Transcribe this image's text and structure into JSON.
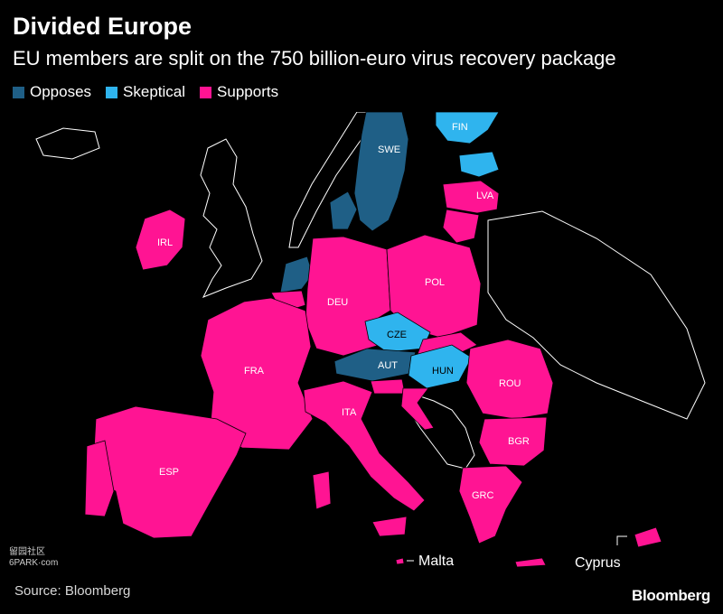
{
  "title": "Divided Europe",
  "subtitle": "EU members are split on the 750 billion-euro virus recovery package",
  "legend": [
    {
      "label": "Opposes",
      "color": "#1f5f86"
    },
    {
      "label": "Skeptical",
      "color": "#2fb4ee"
    },
    {
      "label": "Supports",
      "color": "#ff1493"
    }
  ],
  "countries": {
    "swe": {
      "label": "SWE",
      "stance": "Opposes"
    },
    "fin": {
      "label": "FIN",
      "stance": "Skeptical"
    },
    "lva": {
      "label": "LVA",
      "stance": "Supports"
    },
    "irl": {
      "label": "IRL",
      "stance": "Supports"
    },
    "pol": {
      "label": "POL",
      "stance": "Supports"
    },
    "deu": {
      "label": "DEU",
      "stance": "Supports"
    },
    "cze": {
      "label": "CZE",
      "stance": "Skeptical"
    },
    "aut": {
      "label": "AUT",
      "stance": "Opposes"
    },
    "hun": {
      "label": "HUN",
      "stance": "Skeptical"
    },
    "rou": {
      "label": "ROU",
      "stance": "Supports"
    },
    "fra": {
      "label": "FRA",
      "stance": "Supports"
    },
    "ita": {
      "label": "ITA",
      "stance": "Supports"
    },
    "bgr": {
      "label": "BGR",
      "stance": "Supports"
    },
    "esp": {
      "label": "ESP",
      "stance": "Supports"
    },
    "grc": {
      "label": "GRC",
      "stance": "Supports"
    }
  },
  "callouts": {
    "malta": "Malta",
    "cyprus": "Cyprus"
  },
  "source": "Source: Bloomberg",
  "brand": "Bloomberg",
  "watermark_line1": "留园社区",
  "watermark_line2": "6PARK·com"
}
